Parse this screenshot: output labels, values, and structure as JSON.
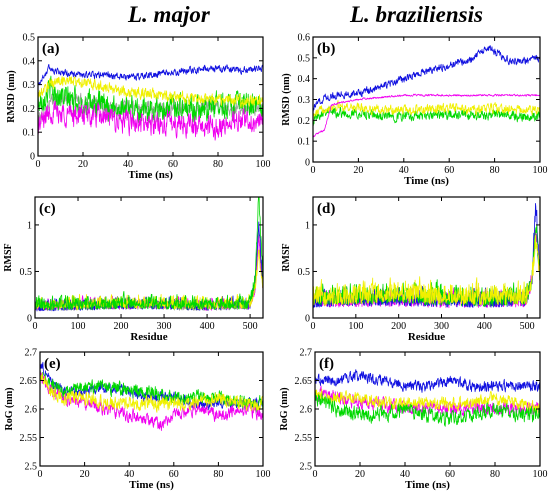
{
  "titles": {
    "left": "L. major",
    "right": "L. braziliensis"
  },
  "colors": {
    "blue": "#1010e0",
    "yellow": "#f0f000",
    "green": "#00d800",
    "magenta": "#f000f0",
    "gray": "#a0a0a0"
  },
  "chart_data": [
    {
      "id": "a",
      "label": "(a)",
      "type": "line",
      "xlabel": "Time (ns)",
      "ylabel": "RMSD (nm)",
      "xlim": [
        0,
        100
      ],
      "ylim": [
        0,
        0.5
      ],
      "xticks": [
        0,
        20,
        40,
        60,
        80,
        100
      ],
      "yticks": [
        0,
        0.1,
        0.2,
        0.3,
        0.4,
        0.5
      ],
      "series": [
        {
          "color": "gray",
          "x": [
            0,
            5,
            10,
            20,
            30,
            40,
            50,
            60,
            70,
            80,
            90,
            100
          ],
          "y": [
            0.15,
            0.22,
            0.24,
            0.23,
            0.21,
            0.2,
            0.2,
            0.2,
            0.2,
            0.21,
            0.2,
            0.2
          ],
          "noise": 0.025
        },
        {
          "color": "green",
          "x": [
            0,
            5,
            10,
            20,
            30,
            40,
            50,
            60,
            70,
            80,
            90,
            100
          ],
          "y": [
            0.22,
            0.28,
            0.25,
            0.22,
            0.21,
            0.2,
            0.19,
            0.21,
            0.2,
            0.22,
            0.21,
            0.21
          ],
          "noise": 0.045
        },
        {
          "color": "magenta",
          "x": [
            0,
            5,
            10,
            20,
            30,
            40,
            50,
            60,
            70,
            80,
            90,
            100
          ],
          "y": [
            0.12,
            0.19,
            0.18,
            0.17,
            0.16,
            0.14,
            0.13,
            0.14,
            0.13,
            0.12,
            0.15,
            0.14
          ],
          "noise": 0.04
        },
        {
          "color": "yellow",
          "x": [
            0,
            5,
            10,
            20,
            30,
            40,
            50,
            60,
            70,
            80,
            90,
            100
          ],
          "y": [
            0.25,
            0.3,
            0.32,
            0.31,
            0.29,
            0.27,
            0.26,
            0.25,
            0.24,
            0.24,
            0.23,
            0.24
          ],
          "noise": 0.02
        },
        {
          "color": "blue",
          "x": [
            0,
            5,
            10,
            20,
            30,
            40,
            50,
            60,
            70,
            80,
            90,
            100
          ],
          "y": [
            0.3,
            0.37,
            0.35,
            0.34,
            0.34,
            0.33,
            0.34,
            0.35,
            0.36,
            0.37,
            0.36,
            0.37
          ],
          "noise": 0.012
        }
      ]
    },
    {
      "id": "b",
      "label": "(b)",
      "type": "line",
      "xlabel": "Time (ns)",
      "ylabel": "RMSD (nm)",
      "xlim": [
        0,
        100
      ],
      "ylim": [
        0,
        0.6
      ],
      "xticks": [
        0,
        20,
        40,
        60,
        80,
        100
      ],
      "yticks": [
        0,
        0.1,
        0.2,
        0.3,
        0.4,
        0.5,
        0.6
      ],
      "series": [
        {
          "color": "green",
          "x": [
            0,
            5,
            10,
            20,
            30,
            40,
            50,
            60,
            70,
            80,
            90,
            100
          ],
          "y": [
            0.2,
            0.25,
            0.24,
            0.23,
            0.22,
            0.22,
            0.22,
            0.23,
            0.22,
            0.23,
            0.22,
            0.22
          ],
          "noise": 0.02
        },
        {
          "color": "yellow",
          "x": [
            0,
            5,
            10,
            20,
            30,
            40,
            50,
            60,
            70,
            80,
            90,
            100
          ],
          "y": [
            0.22,
            0.26,
            0.27,
            0.26,
            0.25,
            0.25,
            0.25,
            0.26,
            0.25,
            0.26,
            0.25,
            0.25
          ],
          "noise": 0.018
        },
        {
          "color": "magenta",
          "x": [
            0,
            2,
            5,
            8,
            10,
            20,
            30,
            40,
            60,
            80,
            100
          ],
          "y": [
            0.12,
            0.14,
            0.15,
            0.27,
            0.28,
            0.3,
            0.31,
            0.32,
            0.32,
            0.32,
            0.32
          ],
          "noise": 0.004
        },
        {
          "color": "blue",
          "x": [
            0,
            5,
            10,
            20,
            30,
            40,
            50,
            60,
            70,
            78,
            85,
            90,
            100
          ],
          "y": [
            0.26,
            0.31,
            0.32,
            0.33,
            0.36,
            0.4,
            0.44,
            0.46,
            0.5,
            0.55,
            0.49,
            0.48,
            0.5
          ],
          "noise": 0.015
        }
      ]
    },
    {
      "id": "c",
      "label": "(c)",
      "type": "line",
      "xlabel": "Residue",
      "ylabel": "RMSF",
      "xlim": [
        0,
        530
      ],
      "ylim": [
        0,
        1.3
      ],
      "xticks": [
        0,
        100,
        200,
        300,
        400,
        500
      ],
      "yticks": [
        0,
        0.5,
        1
      ],
      "series": [
        {
          "color": "gray",
          "x": [
            0,
            100,
            200,
            300,
            400,
            500,
            512,
            520,
            530
          ],
          "y": [
            0.1,
            0.1,
            0.12,
            0.11,
            0.1,
            0.12,
            0.3,
            0.9,
            0.3
          ],
          "noise": 0.06
        },
        {
          "color": "magenta",
          "x": [
            0,
            100,
            200,
            300,
            400,
            500,
            512,
            520,
            530
          ],
          "y": [
            0.1,
            0.12,
            0.12,
            0.13,
            0.11,
            0.12,
            0.3,
            0.8,
            0.3
          ],
          "noise": 0.07
        },
        {
          "color": "blue",
          "x": [
            0,
            100,
            200,
            300,
            400,
            500,
            512,
            520,
            530
          ],
          "y": [
            0.1,
            0.11,
            0.12,
            0.12,
            0.11,
            0.12,
            0.4,
            1.0,
            0.3
          ],
          "noise": 0.07
        },
        {
          "color": "yellow",
          "x": [
            0,
            100,
            200,
            300,
            400,
            500,
            512,
            520,
            530
          ],
          "y": [
            0.12,
            0.12,
            0.14,
            0.13,
            0.12,
            0.13,
            0.3,
            0.7,
            0.3
          ],
          "noise": 0.08
        },
        {
          "color": "green",
          "x": [
            0,
            100,
            200,
            300,
            400,
            500,
            512,
            520,
            530
          ],
          "y": [
            0.12,
            0.12,
            0.13,
            0.13,
            0.12,
            0.13,
            0.4,
            1.3,
            0.4
          ],
          "noise": 0.08
        }
      ]
    },
    {
      "id": "d",
      "label": "(d)",
      "type": "line",
      "xlabel": "Residue",
      "ylabel": "RMSF",
      "xlim": [
        0,
        530
      ],
      "ylim": [
        0,
        1.3
      ],
      "xticks": [
        0,
        100,
        200,
        300,
        400,
        500
      ],
      "yticks": [
        0,
        0.5,
        1
      ],
      "series": [
        {
          "color": "magenta",
          "x": [
            0,
            100,
            200,
            300,
            400,
            500,
            512,
            520,
            530
          ],
          "y": [
            0.15,
            0.16,
            0.16,
            0.15,
            0.15,
            0.16,
            0.4,
            0.9,
            0.4
          ],
          "noise": 0.1
        },
        {
          "color": "blue",
          "x": [
            0,
            100,
            200,
            300,
            400,
            500,
            512,
            520,
            530
          ],
          "y": [
            0.15,
            0.17,
            0.17,
            0.16,
            0.15,
            0.17,
            0.4,
            1.2,
            0.4
          ],
          "noise": 0.1
        },
        {
          "color": "green",
          "x": [
            0,
            100,
            200,
            300,
            400,
            500,
            512,
            520,
            530
          ],
          "y": [
            0.18,
            0.19,
            0.2,
            0.18,
            0.17,
            0.19,
            0.4,
            1.0,
            0.4
          ],
          "noise": 0.12
        },
        {
          "color": "yellow",
          "x": [
            0,
            100,
            200,
            300,
            400,
            500,
            512,
            520,
            530
          ],
          "y": [
            0.18,
            0.2,
            0.22,
            0.2,
            0.19,
            0.2,
            0.4,
            0.8,
            0.4
          ],
          "noise": 0.13
        }
      ]
    },
    {
      "id": "e",
      "label": "(e)",
      "type": "line",
      "xlabel": "Time (ns)",
      "ylabel": "RoG (nm)",
      "xlim": [
        0,
        100
      ],
      "ylim": [
        2.5,
        2.7
      ],
      "xticks": [
        0,
        20,
        40,
        60,
        80,
        100
      ],
      "yticks": [
        2.5,
        2.55,
        2.6,
        2.65,
        2.7
      ],
      "series": [
        {
          "color": "blue",
          "x": [
            0,
            5,
            10,
            20,
            30,
            40,
            50,
            60,
            70,
            80,
            90,
            100
          ],
          "y": [
            2.68,
            2.65,
            2.63,
            2.63,
            2.64,
            2.63,
            2.62,
            2.62,
            2.61,
            2.61,
            2.61,
            2.61
          ],
          "noise": 0.008
        },
        {
          "color": "green",
          "x": [
            0,
            5,
            10,
            20,
            30,
            40,
            50,
            60,
            70,
            80,
            90,
            100
          ],
          "y": [
            2.67,
            2.64,
            2.63,
            2.64,
            2.64,
            2.63,
            2.63,
            2.62,
            2.62,
            2.62,
            2.61,
            2.61
          ],
          "noise": 0.01
        },
        {
          "color": "magenta",
          "x": [
            0,
            5,
            10,
            20,
            30,
            40,
            50,
            55,
            60,
            70,
            80,
            90,
            100
          ],
          "y": [
            2.66,
            2.63,
            2.62,
            2.61,
            2.6,
            2.59,
            2.58,
            2.57,
            2.59,
            2.6,
            2.59,
            2.6,
            2.59
          ],
          "noise": 0.009
        },
        {
          "color": "yellow",
          "x": [
            0,
            5,
            10,
            20,
            30,
            40,
            50,
            60,
            70,
            80,
            90,
            100
          ],
          "y": [
            2.66,
            2.63,
            2.62,
            2.62,
            2.61,
            2.61,
            2.61,
            2.61,
            2.61,
            2.62,
            2.61,
            2.61
          ],
          "noise": 0.01
        }
      ]
    },
    {
      "id": "f",
      "label": "(f)",
      "type": "line",
      "xlabel": "Time (ns)",
      "ylabel": "RoG (nm)",
      "xlim": [
        0,
        100
      ],
      "ylim": [
        2.5,
        2.7
      ],
      "xticks": [
        0,
        20,
        40,
        60,
        80,
        100
      ],
      "yticks": [
        2.5,
        2.55,
        2.6,
        2.65,
        2.7
      ],
      "series": [
        {
          "color": "blue",
          "x": [
            0,
            5,
            10,
            20,
            30,
            40,
            50,
            60,
            70,
            80,
            90,
            100
          ],
          "y": [
            2.65,
            2.65,
            2.65,
            2.66,
            2.65,
            2.64,
            2.64,
            2.65,
            2.64,
            2.64,
            2.64,
            2.64
          ],
          "noise": 0.008
        },
        {
          "color": "magenta",
          "x": [
            0,
            5,
            10,
            20,
            30,
            40,
            50,
            60,
            70,
            80,
            90,
            100
          ],
          "y": [
            2.62,
            2.63,
            2.62,
            2.61,
            2.61,
            2.6,
            2.6,
            2.6,
            2.6,
            2.6,
            2.6,
            2.6
          ],
          "noise": 0.01
        },
        {
          "color": "yellow",
          "x": [
            0,
            5,
            10,
            20,
            30,
            40,
            50,
            60,
            70,
            80,
            90,
            100
          ],
          "y": [
            2.63,
            2.62,
            2.62,
            2.62,
            2.61,
            2.61,
            2.61,
            2.61,
            2.61,
            2.62,
            2.61,
            2.6
          ],
          "noise": 0.009
        },
        {
          "color": "green",
          "x": [
            0,
            5,
            10,
            20,
            30,
            40,
            50,
            60,
            70,
            80,
            90,
            100
          ],
          "y": [
            2.62,
            2.61,
            2.6,
            2.59,
            2.59,
            2.6,
            2.59,
            2.58,
            2.59,
            2.6,
            2.59,
            2.59
          ],
          "noise": 0.011
        }
      ]
    }
  ]
}
